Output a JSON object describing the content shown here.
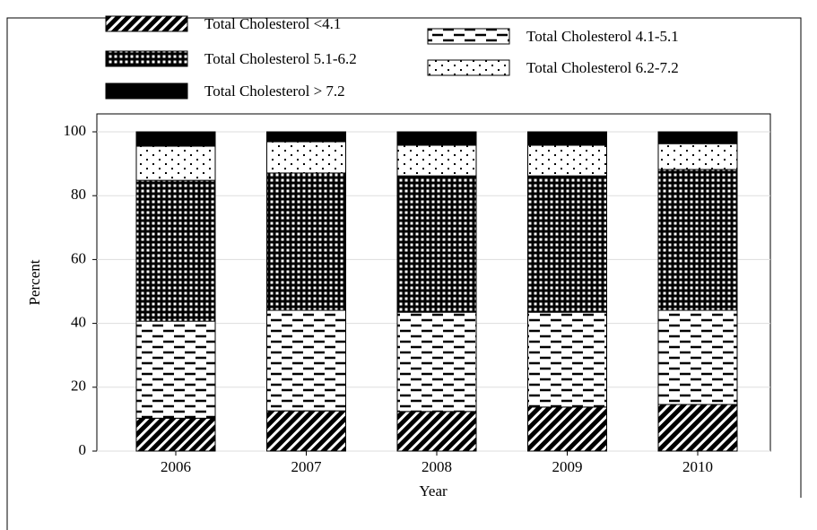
{
  "chart_data": {
    "type": "stacked_bar",
    "x_label": "Year",
    "y_label": "Percent",
    "categories": [
      "2006",
      "2007",
      "2008",
      "2009",
      "2010"
    ],
    "series": [
      {
        "name": "Total Cholesterol <4.1",
        "pattern": "diagonal",
        "values": [
          10.3,
          12.6,
          12.4,
          13.8,
          14.6
        ]
      },
      {
        "name": "Total Cholesterol 4.1-5.1",
        "pattern": "dash",
        "values": [
          30.4,
          31.5,
          31.1,
          29.7,
          29.5
        ]
      },
      {
        "name": "Total Cholesterol 5.1-6.2",
        "pattern": "grid",
        "values": [
          44.1,
          43.0,
          42.7,
          42.7,
          44.1
        ]
      },
      {
        "name": "Total Cholesterol 6.2-7.2",
        "pattern": "dots",
        "values": [
          10.7,
          9.8,
          9.6,
          9.6,
          8.1
        ]
      },
      {
        "name": "Total Cholesterol > 7.2",
        "pattern": "solid",
        "values": [
          4.5,
          3.1,
          4.2,
          4.2,
          3.7
        ]
      }
    ],
    "ylim": [
      0,
      100
    ],
    "yticks": [
      0,
      20,
      40,
      60,
      80,
      100
    ],
    "grid": true
  }
}
